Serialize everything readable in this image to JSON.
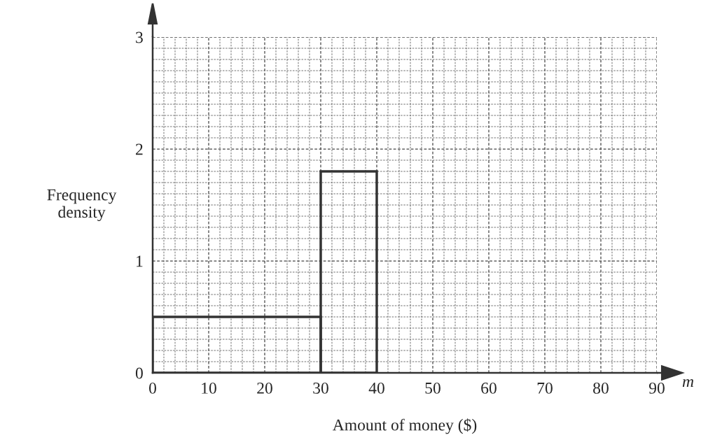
{
  "chart_data": {
    "type": "histogram",
    "xlabel": "Amount of money ($)",
    "ylabel": "Frequency\ndensity",
    "bins": [
      0,
      30,
      40
    ],
    "values": [
      0.5,
      1.8
    ],
    "color": "#333333",
    "xlim": [
      0,
      90
    ],
    "ylim": [
      0,
      3
    ],
    "xticks": [
      0,
      10,
      20,
      30,
      40,
      50,
      60,
      70,
      80,
      90
    ],
    "yticks": [
      0,
      1,
      2,
      3
    ],
    "grid": true,
    "annotations": [
      "m"
    ]
  }
}
